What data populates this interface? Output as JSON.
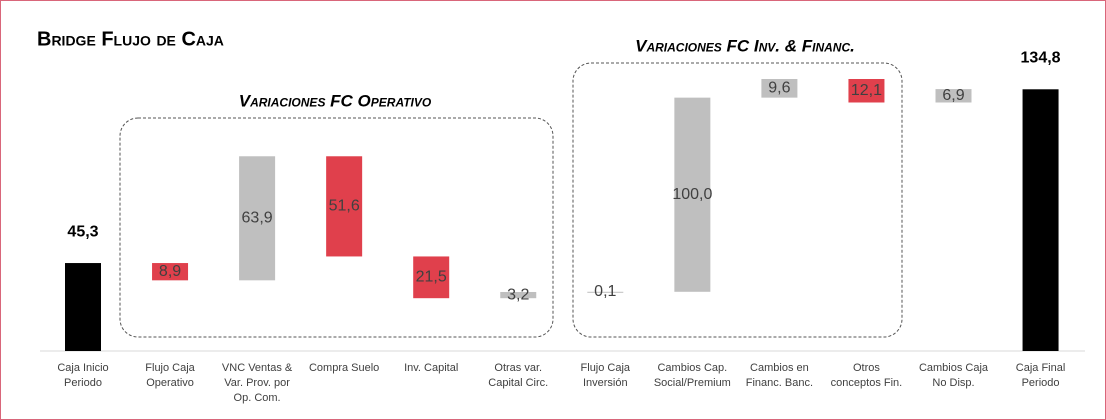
{
  "chart_data": {
    "type": "waterfall",
    "title": "Bridge Flujo de Caja",
    "annotations": [
      "Variaciones FC Operativo",
      "Variaciones FC Inv. & Financ."
    ],
    "categories": [
      "Caja Inicio\nPeriodo",
      "Flujo Caja\nOperativo",
      "VNC Ventas &\nVar. Prov. por\nOp. Com.",
      "Compra Suelo",
      "Inv. Capital",
      "Otras var.\nCapital Circ.",
      "Flujo Caja\nInversión",
      "Cambios Cap.\nSocial/Premium",
      "Cambios en\nFinanc. Banc.",
      "Otros\nconceptos Fin.",
      "Cambios Caja\nNo Disp.",
      "Caja Final\nPeriodo"
    ],
    "values": [
      45.3,
      8.9,
      63.9,
      51.6,
      21.5,
      3.2,
      0.1,
      100.0,
      9.6,
      12.1,
      6.9,
      134.8
    ],
    "value_labels": [
      "45,3",
      "8,9",
      "63,9",
      "51,6",
      "21,5",
      "3,2",
      "0,1",
      "100,0",
      "9,6",
      "12,1",
      "6,9",
      "134,8"
    ],
    "measure": [
      "total",
      "decrease",
      "increase",
      "decrease",
      "decrease",
      "increase",
      "increase",
      "increase",
      "increase",
      "decrease",
      "increase",
      "total"
    ],
    "colors": {
      "total": "#000000",
      "increase": "#bfbfbf",
      "decrease": "#e0404c"
    }
  }
}
